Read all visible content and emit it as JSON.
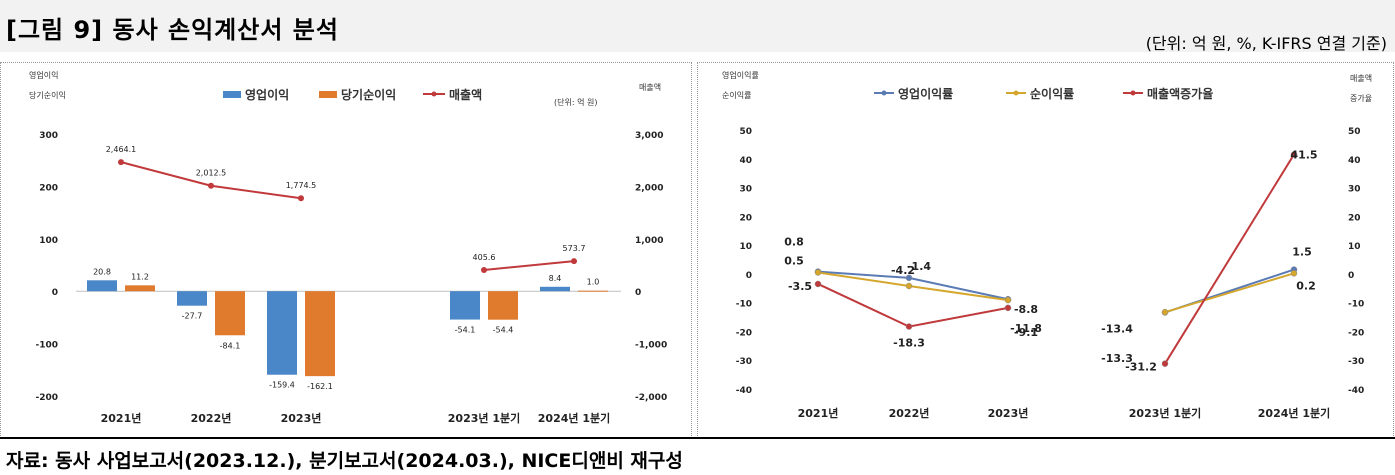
{
  "header": {
    "title": "[그림 9] 동사 손익계산서 분석",
    "unit_note": "(단위: 억 원, %, K-IFRS 연결 기준)"
  },
  "footer": {
    "source": "자료: 동사 사업보고서(2023.12.), 분기보고서(2024.03.), NICE디앤비 재구성"
  },
  "chart_data": [
    {
      "type": "bar",
      "left_axis_label_1": "영업이익",
      "left_axis_label_2": "당기순이익",
      "right_axis_label": "매출액",
      "unit_label": "(단위: 억 원)",
      "categories": [
        "2021년",
        "2022년",
        "2023년",
        "2023년 1분기",
        "2024년 1분기"
      ],
      "ylim": [
        -200,
        300
      ],
      "y_ticks": [
        "300",
        "200",
        "100",
        "0",
        "-100",
        "-200"
      ],
      "y2lim": [
        -2000,
        3000
      ],
      "y2_ticks": [
        "3,000",
        "2,000",
        "1,000",
        "0",
        "-1,000",
        "-2,000"
      ],
      "series": [
        {
          "name": "영업이익",
          "kind": "bar",
          "color": "#4a87c9",
          "values": [
            20.8,
            -27.7,
            -159.4,
            -54.1,
            8.4
          ],
          "labels": [
            "20.8",
            "-27.7",
            "-159.4",
            "-54.1",
            "8.4"
          ]
        },
        {
          "name": "당기순이익",
          "kind": "bar",
          "color": "#e07b2e",
          "values": [
            11.2,
            -84.1,
            -162.1,
            -54.4,
            1.0
          ],
          "labels": [
            "11.2",
            "-84.1",
            "-162.1",
            "-54.4",
            "1.0"
          ]
        },
        {
          "name": "매출액",
          "kind": "line",
          "axis": "right",
          "color": "#c0393b",
          "values": [
            2464.1,
            2012.5,
            1774.5,
            405.6,
            573.7
          ],
          "labels": [
            "2,464.1",
            "2,012.5",
            "1,774.5",
            "405.6",
            "573.7"
          ]
        }
      ],
      "legend": "top"
    },
    {
      "type": "line",
      "left_axis_label_1": "영업이익률",
      "left_axis_label_2": "순이익률",
      "right_axis_label_1": "매출액",
      "right_axis_label_2": "증가율",
      "categories": [
        "2021년",
        "2022년",
        "2023년",
        "2023년 1분기",
        "2024년 1분기"
      ],
      "ylim": [
        -40,
        50
      ],
      "y_ticks": [
        "50",
        "40",
        "30",
        "20",
        "10",
        "0",
        "-10",
        "-20",
        "-30",
        "-40"
      ],
      "series": [
        {
          "name": "영업이익률",
          "color": "#5b7bb5",
          "values": [
            0.8,
            -1.4,
            -8.8,
            -13.4,
            1.5
          ],
          "labels": [
            "0.8",
            "-1.4",
            "-8.8",
            "-13.4",
            "1.5"
          ]
        },
        {
          "name": "순이익률",
          "color": "#d4a72c",
          "values": [
            0.5,
            -4.2,
            -9.1,
            -13.3,
            0.2
          ],
          "labels": [
            "0.5",
            "-4.2",
            "-9.1",
            "-13.3",
            "0.2"
          ]
        },
        {
          "name": "매출액증가율",
          "color": "#c0393b",
          "values": [
            -3.5,
            -18.3,
            -11.8,
            -31.2,
            41.5
          ],
          "labels": [
            "-3.5",
            "-18.3",
            "-11.8",
            "-31.2",
            "41.5"
          ]
        }
      ],
      "legend": "top"
    }
  ]
}
